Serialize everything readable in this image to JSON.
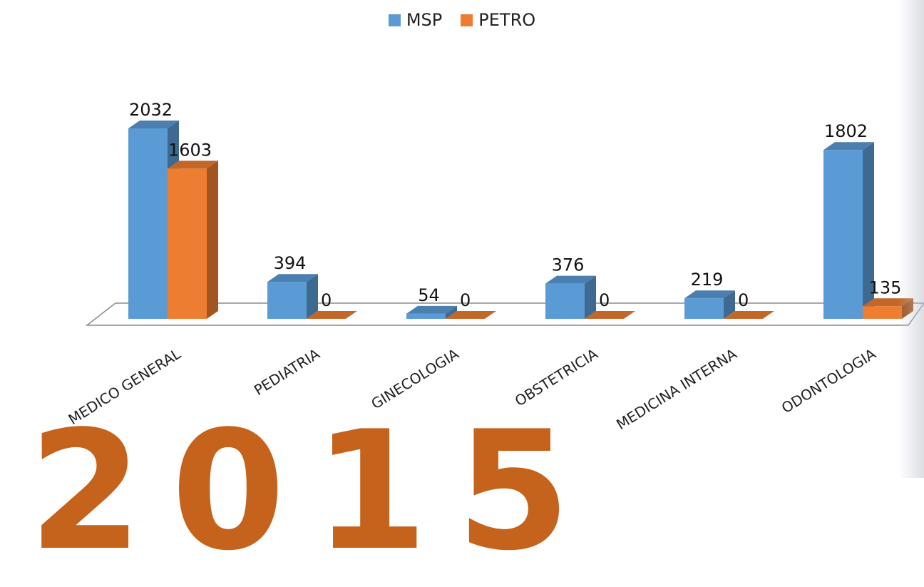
{
  "legend": [
    {
      "name": "MSP",
      "color": "#5b9bd5"
    },
    {
      "name": "PETRO",
      "color": "#ed7d31"
    }
  ],
  "watermark_text": "2015",
  "chart_data": {
    "type": "bar",
    "style": "3d-clustered-column",
    "categories": [
      "MEDICO GENERAL",
      "PEDIATRIA",
      "GINECOLOGIA",
      "OBSTETRICIA",
      "MEDICINA INTERNA",
      "ODONTOLOGIA"
    ],
    "series": [
      {
        "name": "MSP",
        "values": [
          2032,
          394,
          54,
          376,
          219,
          1802
        ],
        "color": "#5b9bd5"
      },
      {
        "name": "PETRO",
        "values": [
          1603,
          0,
          0,
          0,
          0,
          135
        ],
        "color": "#ed7d31"
      }
    ],
    "title": "",
    "xlabel": "",
    "ylabel": "",
    "ylim": [
      0,
      2100
    ],
    "grid": false,
    "data_labels": true,
    "legend_position": "top"
  }
}
